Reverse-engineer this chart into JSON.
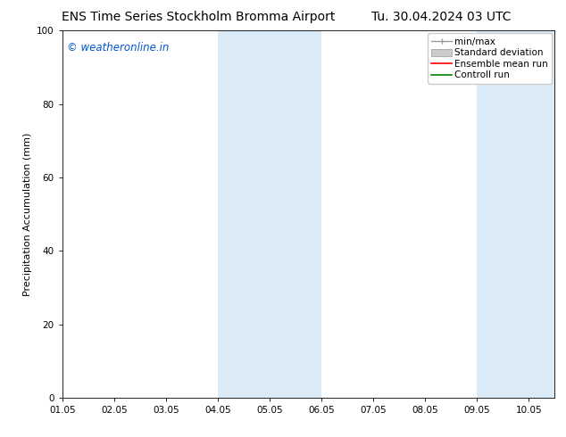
{
  "title_left": "ENS Time Series Stockholm Bromma Airport",
  "title_right": "Tu. 30.04.2024 03 UTC",
  "ylabel": "Precipitation Accumulation (mm)",
  "xlim_start": 0.0,
  "xlim_end": 9.5,
  "ylim": [
    0,
    100
  ],
  "yticks": [
    0,
    20,
    40,
    60,
    80,
    100
  ],
  "xtick_positions": [
    0,
    1,
    2,
    3,
    4,
    5,
    6,
    7,
    8,
    9
  ],
  "xtick_labels": [
    "01.05",
    "02.05",
    "03.05",
    "04.05",
    "05.05",
    "06.05",
    "07.05",
    "08.05",
    "09.05",
    "10.05"
  ],
  "shaded_bands": [
    {
      "x_start": 3.0,
      "x_end": 5.0
    },
    {
      "x_start": 8.0,
      "x_end": 9.5
    }
  ],
  "shade_color": "#daeaf7",
  "watermark_text": "© weatheronline.in",
  "watermark_color": "#0055cc",
  "legend_items": [
    {
      "label": "min/max",
      "color": "#aaaaaa",
      "style": "minmax"
    },
    {
      "label": "Standard deviation",
      "color": "#cccccc",
      "style": "stddev"
    },
    {
      "label": "Ensemble mean run",
      "color": "#ff0000",
      "style": "line"
    },
    {
      "label": "Controll run",
      "color": "#008000",
      "style": "line"
    }
  ],
  "bg_color": "#ffffff",
  "plot_bg_color": "#ffffff",
  "title_fontsize": 10,
  "axis_label_fontsize": 8,
  "tick_fontsize": 7.5,
  "legend_fontsize": 7.5
}
